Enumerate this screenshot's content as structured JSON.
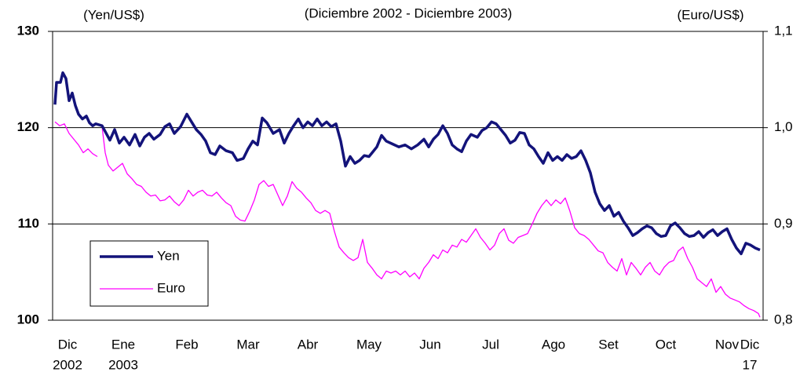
{
  "chart_data": {
    "type": "line",
    "subtitle": "(Diciembre 2002 - Diciembre 2003)",
    "y_label": "(Yen/US$)",
    "y2_label": "(Euro/US$)",
    "xlim": [
      0,
      905
    ],
    "ylim": [
      100,
      130
    ],
    "yticks": [
      100,
      110,
      120,
      130
    ],
    "y2lim": [
      0.8,
      1.1
    ],
    "y2ticks": [
      {
        "value": 0.8,
        "label": "0,8"
      },
      {
        "value": 0.9,
        "label": "0,9"
      },
      {
        "value": 1.0,
        "label": "1,0"
      },
      {
        "value": 1.1,
        "label": "1,1"
      }
    ],
    "xticks": [
      {
        "value": 19,
        "label": "Dic"
      },
      {
        "value": 90,
        "label": "Ene"
      },
      {
        "value": 171,
        "label": "Feb"
      },
      {
        "value": 249,
        "label": "Mar"
      },
      {
        "value": 325,
        "label": "Abr"
      },
      {
        "value": 403,
        "label": "May"
      },
      {
        "value": 481,
        "label": "Jun"
      },
      {
        "value": 558,
        "label": "Jul"
      },
      {
        "value": 638,
        "label": "Ago"
      },
      {
        "value": 708,
        "label": "Set"
      },
      {
        "value": 781,
        "label": "Oct"
      },
      {
        "value": 859,
        "label": "Nov"
      },
      {
        "value": 888,
        "label": "Dic"
      }
    ],
    "xticks_row2": [
      {
        "value": 19,
        "label": "2002"
      },
      {
        "value": 90,
        "label": "2003"
      },
      {
        "value": 888,
        "label": "17"
      }
    ],
    "grid": true,
    "legend": "lower-left",
    "series": [
      {
        "name": "Yen",
        "color": "#13137a",
        "x": [
          3,
          5,
          10,
          13,
          17,
          21,
          25,
          29,
          33,
          38,
          43,
          47,
          51,
          55,
          63,
          67,
          73,
          79,
          85,
          91,
          98,
          105,
          111,
          117,
          123,
          129,
          137,
          143,
          149,
          155,
          163,
          171,
          177,
          183,
          189,
          195,
          201,
          207,
          213,
          221,
          229,
          235,
          243,
          249,
          255,
          261,
          267,
          273,
          281,
          289,
          295,
          301,
          307,
          313,
          319,
          325,
          331,
          337,
          343,
          349,
          355,
          361,
          367,
          373,
          379,
          385,
          391,
          397,
          403,
          407,
          413,
          419,
          425,
          433,
          441,
          449,
          457,
          465,
          473,
          479,
          485,
          491,
          497,
          503,
          509,
          515,
          521,
          527,
          533,
          541,
          547,
          553,
          559,
          565,
          571,
          577,
          583,
          589,
          595,
          601,
          607,
          613,
          619,
          625,
          631,
          637,
          643,
          649,
          655,
          661,
          667,
          673,
          679,
          685,
          691,
          697,
          703,
          709,
          715,
          721,
          727,
          733,
          739,
          745,
          751,
          757,
          763,
          769,
          775,
          781,
          787,
          793,
          799,
          805,
          811,
          817,
          823,
          829,
          835,
          841,
          847,
          853,
          859,
          865,
          871,
          877,
          883,
          889,
          895,
          901
        ],
        "values": [
          122.4,
          124.7,
          124.7,
          125.7,
          125.1,
          122.8,
          123.6,
          122.3,
          121.4,
          120.9,
          121.2,
          120.5,
          120.2,
          120.4,
          120.2,
          119.6,
          118.7,
          119.8,
          118.4,
          119.0,
          118.2,
          119.3,
          118.1,
          119.0,
          119.4,
          118.8,
          119.3,
          120.1,
          120.4,
          119.4,
          120.1,
          121.4,
          120.6,
          119.8,
          119.3,
          118.6,
          117.4,
          117.2,
          118.1,
          117.6,
          117.4,
          116.6,
          116.8,
          117.8,
          118.6,
          118.2,
          121.0,
          120.5,
          119.4,
          119.8,
          118.4,
          119.4,
          120.2,
          120.9,
          120.0,
          120.6,
          120.2,
          120.9,
          120.2,
          120.6,
          120.1,
          120.4,
          118.6,
          116.0,
          117.0,
          116.3,
          116.6,
          117.1,
          117.0,
          117.4,
          118.0,
          119.2,
          118.6,
          118.3,
          118.0,
          118.2,
          117.8,
          118.2,
          118.8,
          118.0,
          118.8,
          119.3,
          120.2,
          119.4,
          118.2,
          117.8,
          117.5,
          118.6,
          119.3,
          119.0,
          119.7,
          120.0,
          120.6,
          120.4,
          119.8,
          119.2,
          118.4,
          118.7,
          119.5,
          119.4,
          118.2,
          117.8,
          117.0,
          116.3,
          117.4,
          116.6,
          117.0,
          116.6,
          117.2,
          116.8,
          117.0,
          117.6,
          116.6,
          115.3,
          113.3,
          112.1,
          111.4,
          111.9,
          110.8,
          111.2,
          110.3,
          109.6,
          108.8,
          109.1,
          109.5,
          109.8,
          109.6,
          109.0,
          108.7,
          108.8,
          109.8,
          110.1,
          109.6,
          109.0,
          108.7,
          108.8,
          109.2,
          108.6,
          109.1,
          109.4,
          108.8,
          109.2,
          109.5,
          108.4,
          107.5,
          106.9,
          108.0,
          107.8,
          107.5,
          107.3
        ]
      },
      {
        "name": "Euro",
        "color": "#ff00ff",
        "axis": "y2",
        "x": [
          3,
          9,
          15,
          21,
          27,
          33,
          39,
          45,
          51,
          57,
          60,
          63,
          67,
          71,
          77,
          83,
          89,
          95,
          101,
          107,
          113,
          119,
          125,
          131,
          137,
          143,
          149,
          155,
          161,
          167,
          173,
          179,
          185,
          191,
          197,
          203,
          209,
          215,
          221,
          227,
          233,
          239,
          245,
          251,
          257,
          263,
          269,
          275,
          281,
          287,
          293,
          299,
          305,
          311,
          317,
          323,
          329,
          335,
          341,
          347,
          353,
          359,
          365,
          371,
          377,
          383,
          389,
          395,
          401,
          407,
          413,
          419,
          425,
          431,
          437,
          443,
          449,
          455,
          461,
          467,
          473,
          479,
          485,
          491,
          497,
          503,
          509,
          515,
          521,
          527,
          533,
          539,
          545,
          551,
          557,
          563,
          569,
          575,
          581,
          587,
          593,
          599,
          605,
          611,
          617,
          623,
          629,
          635,
          641,
          647,
          653,
          659,
          665,
          671,
          677,
          683,
          689,
          695,
          701,
          707,
          713,
          719,
          725,
          731,
          737,
          743,
          749,
          755,
          761,
          767,
          773,
          779,
          785,
          791,
          797,
          803,
          809,
          815,
          821,
          827,
          833,
          839,
          845,
          851,
          857,
          863,
          869,
          875,
          881,
          887,
          893,
          899,
          901
        ],
        "values": [
          1.006,
          1.002,
          1.004,
          0.994,
          0.988,
          0.982,
          0.974,
          0.978,
          0.973,
          0.97,
          null,
          1.001,
          0.974,
          0.961,
          0.955,
          0.959,
          0.963,
          0.952,
          0.947,
          0.941,
          0.939,
          0.933,
          0.929,
          0.93,
          0.924,
          0.925,
          0.929,
          0.923,
          0.919,
          0.925,
          0.935,
          0.929,
          0.933,
          0.935,
          0.93,
          0.929,
          0.933,
          0.927,
          0.922,
          0.919,
          0.908,
          0.904,
          0.903,
          0.913,
          0.925,
          0.941,
          0.945,
          0.939,
          0.941,
          0.93,
          0.919,
          0.929,
          0.944,
          0.937,
          0.933,
          0.927,
          0.922,
          0.914,
          0.911,
          0.914,
          0.911,
          0.892,
          0.876,
          0.87,
          0.865,
          0.862,
          0.865,
          0.884,
          0.86,
          0.854,
          0.847,
          0.843,
          0.851,
          0.849,
          0.851,
          0.847,
          0.851,
          0.845,
          0.849,
          0.843,
          0.854,
          0.86,
          0.868,
          0.864,
          0.873,
          0.87,
          0.878,
          0.876,
          0.884,
          0.881,
          0.888,
          0.895,
          0.886,
          0.88,
          0.873,
          0.878,
          0.89,
          0.895,
          0.883,
          0.88,
          0.886,
          0.888,
          0.89,
          0.9,
          0.911,
          0.919,
          0.925,
          0.919,
          0.925,
          0.921,
          0.927,
          0.913,
          0.896,
          0.89,
          0.888,
          0.884,
          0.878,
          0.872,
          0.87,
          0.86,
          0.855,
          0.851,
          0.864,
          0.847,
          0.86,
          0.854,
          0.847,
          0.855,
          0.86,
          0.851,
          0.847,
          0.855,
          0.86,
          0.862,
          0.872,
          0.876,
          0.864,
          0.855,
          0.843,
          0.839,
          0.835,
          0.843,
          0.829,
          0.835,
          0.827,
          0.823,
          0.821,
          0.819,
          0.815,
          0.812,
          0.81,
          0.807,
          0.803
        ]
      }
    ]
  }
}
